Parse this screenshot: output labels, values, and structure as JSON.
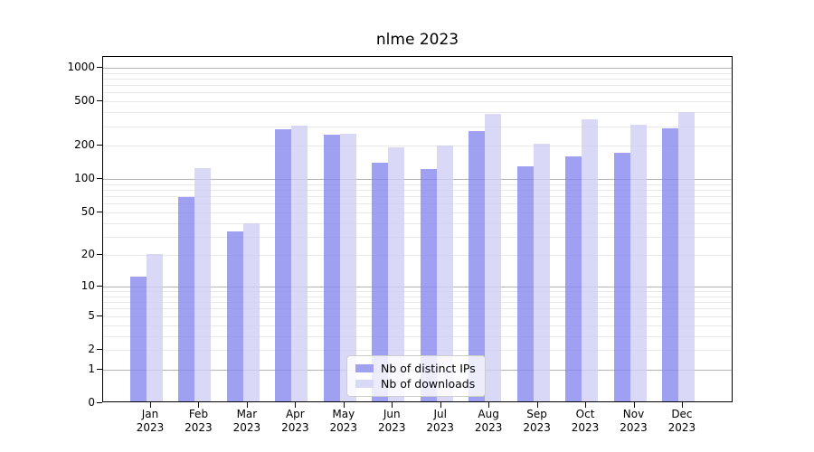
{
  "chart_data": {
    "type": "bar",
    "title": "nlme 2023",
    "year": "2023",
    "months": [
      "Jan",
      "Feb",
      "Mar",
      "Apr",
      "May",
      "Jun",
      "Jul",
      "Aug",
      "Sep",
      "Oct",
      "Nov",
      "Dec"
    ],
    "categories": [
      "Jan 2023",
      "Feb 2023",
      "Mar 2023",
      "Apr 2023",
      "May 2023",
      "Jun 2023",
      "Jul 2023",
      "Aug 2023",
      "Sep 2023",
      "Oct 2023",
      "Nov 2023",
      "Dec 2023"
    ],
    "series": [
      {
        "name": "Nb of distinct IPs",
        "color": "#a1a1f1",
        "values": [
          12,
          66,
          32,
          270,
          241,
          135,
          119,
          260,
          125,
          154,
          166,
          275
        ]
      },
      {
        "name": "Nb of downloads",
        "color": "#d8d8f7",
        "values": [
          20,
          121,
          38,
          291,
          246,
          186,
          193,
          371,
          201,
          334,
          300,
          386
        ]
      }
    ],
    "xlabel": "",
    "ylabel": "",
    "y_axis": {
      "scale": "log1p",
      "ticks": [
        1000,
        500,
        200,
        100,
        50,
        20,
        10,
        5,
        2,
        1,
        0
      ],
      "ylim": [
        0,
        1250
      ],
      "major_gridlines": [
        1,
        10,
        100,
        1000
      ],
      "minor_gridlines": [
        2,
        3,
        4,
        5,
        6,
        7,
        8,
        9,
        20,
        30,
        40,
        50,
        60,
        70,
        80,
        90,
        200,
        300,
        400,
        500,
        600,
        700,
        800,
        900
      ]
    },
    "grid": "on",
    "legend_position": "lower center"
  }
}
